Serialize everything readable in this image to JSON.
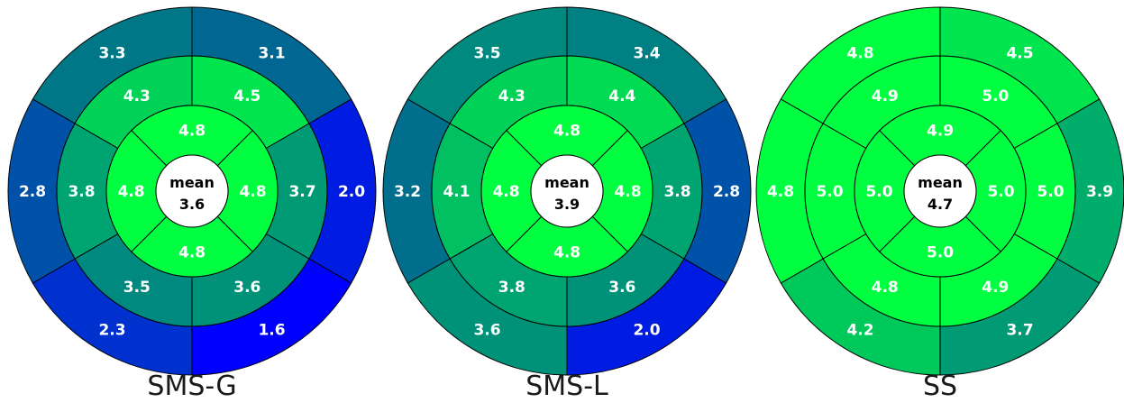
{
  "chart_data": [
    {
      "type": "bullseye",
      "label": "SMS-G",
      "mean_label": "mean",
      "mean_value": "3.6",
      "outer": [
        "3.3",
        "3.1",
        "2.0",
        "1.6",
        "2.3",
        "2.8"
      ],
      "middle": [
        "4.3",
        "4.5",
        "3.7",
        "3.6",
        "3.5",
        "3.8"
      ],
      "inner": [
        "4.8",
        "4.8",
        "4.8",
        "4.8"
      ]
    },
    {
      "type": "bullseye",
      "label": "SMS-L",
      "mean_label": "mean",
      "mean_value": "3.9",
      "outer": [
        "3.5",
        "3.4",
        "2.8",
        "2.0",
        "3.6",
        "3.2"
      ],
      "middle": [
        "4.3",
        "4.4",
        "3.8",
        "3.6",
        "3.8",
        "4.1"
      ],
      "inner": [
        "4.8",
        "4.8",
        "4.8",
        "4.8"
      ]
    },
    {
      "type": "bullseye",
      "label": "SS",
      "mean_label": "mean",
      "mean_value": "4.7",
      "outer": [
        "4.8",
        "4.5",
        "3.9",
        "3.7",
        "4.2",
        "4.8"
      ],
      "middle": [
        "4.9",
        "5.0",
        "5.0",
        "4.9",
        "4.8",
        "5.0"
      ],
      "inner": [
        "4.9",
        "5.0",
        "5.0",
        "5.0"
      ]
    }
  ],
  "color_scale": {
    "low_value": 1.6,
    "high_value": 4.8,
    "low_color": "#0000ff",
    "high_color": "#00ff40"
  }
}
